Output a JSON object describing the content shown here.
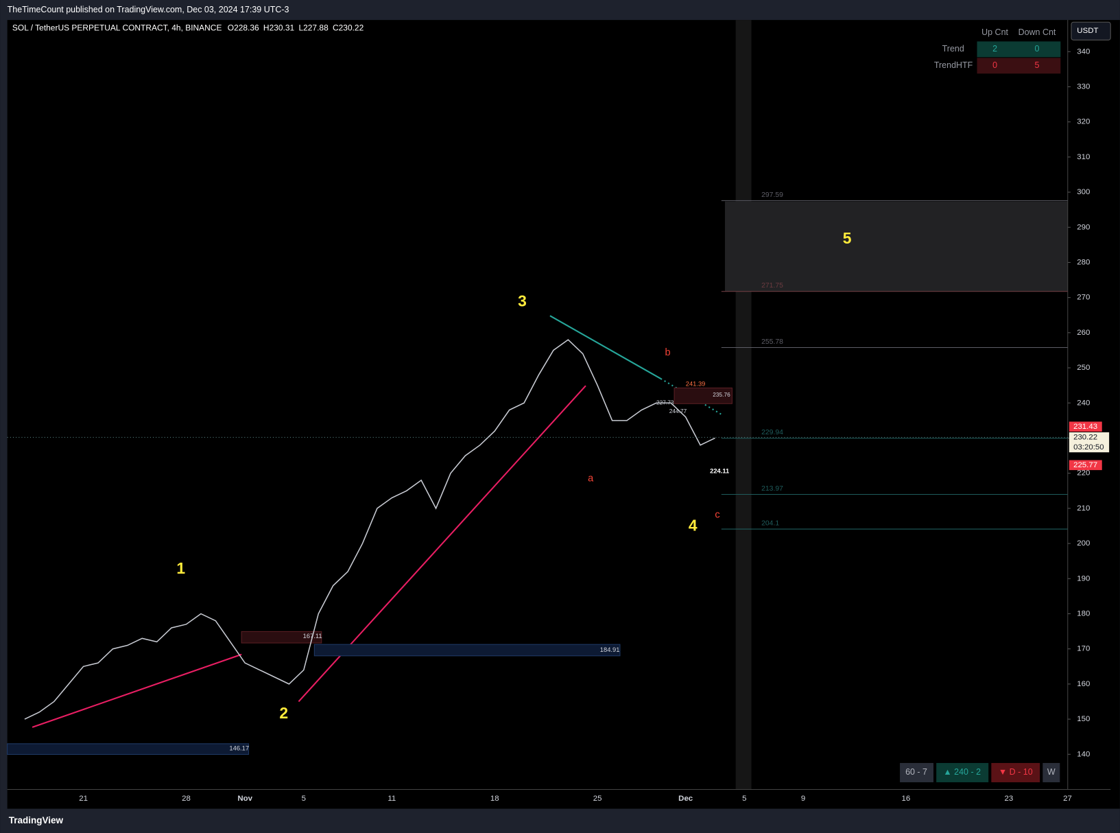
{
  "header": {
    "published": "TheTimeCount published on TradingView.com, Dec 03, 2024 17:39 UTC-3",
    "footer": "TradingView"
  },
  "symbol": {
    "name": "SOL / TetherUS PERPETUAL CONTRACT, 4h, BINANCE",
    "ohlc": [
      {
        "label": "O",
        "value": 228.36
      },
      {
        "label": "H",
        "value": 230.31
      },
      {
        "label": "L",
        "value": 227.88
      },
      {
        "label": "C",
        "value": 230.22
      }
    ]
  },
  "currency": "USDT",
  "table": {
    "header": [
      "Up Cnt",
      "Down Cnt"
    ],
    "rows": [
      [
        "Trend",
        2,
        0
      ],
      [
        "TrendHTF",
        0,
        5
      ]
    ]
  },
  "buttons": [
    "60 - 7",
    "▲ 240 - 2",
    "▼ D - 10",
    "W"
  ],
  "price_labels": {
    "high": 231.43,
    "last": 230.22,
    "countdown": "03:20:50",
    "low": 225.77
  },
  "waves": [
    "1",
    "2",
    "3",
    "4",
    "5"
  ],
  "subwaves": [
    "a",
    "b",
    "c"
  ],
  "annotations": [
    "184.91",
    "146.17",
    "167.11",
    "241.39",
    "235.76",
    "227.73",
    "244.77",
    "224.11"
  ],
  "levels": [
    {
      "value": 297.59,
      "color": "#5d5d66"
    },
    {
      "value": 271.75,
      "color": "#6b3b40"
    },
    {
      "value": 255.78,
      "color": "#5d5d66"
    },
    {
      "value": 229.94,
      "color": "#1f5c5c"
    },
    {
      "value": 213.97,
      "color": "#1f5c5c"
    },
    {
      "value": 204.1,
      "color": "#1f5c5c"
    }
  ],
  "chart_data": {
    "type": "line",
    "color": "#c8cbd3",
    "categories": [
      null,
      null,
      null,
      null,
      "21",
      null,
      null,
      null,
      null,
      null,
      null,
      "28",
      null,
      null,
      null,
      "Nov",
      null,
      null,
      null,
      "5",
      null,
      null,
      null,
      null,
      null,
      "11",
      null,
      null,
      null,
      null,
      null,
      null,
      "18",
      null,
      null,
      null,
      null,
      null,
      null,
      "25",
      null,
      null,
      null,
      null,
      null,
      "Dec",
      null,
      null,
      null,
      "5",
      null,
      null,
      null,
      "9",
      null,
      null,
      null,
      null,
      null,
      null,
      "16",
      null,
      null,
      null,
      null,
      null,
      null,
      "23",
      null,
      null,
      null,
      "27"
    ],
    "values": [
      150,
      152,
      155,
      160,
      165,
      166,
      170,
      171,
      173,
      172,
      176,
      177,
      180,
      178,
      172,
      166,
      164,
      162,
      160,
      164,
      180,
      188,
      192,
      200,
      210,
      213,
      215,
      218,
      210,
      220,
      225,
      228,
      232,
      238,
      240,
      248,
      255,
      258,
      254,
      245,
      235,
      235,
      238,
      240,
      240,
      236,
      228,
      230,
      null,
      null,
      null,
      null,
      null,
      null,
      null,
      null,
      null,
      null,
      null,
      null,
      null,
      null,
      null,
      null,
      null,
      null,
      null,
      null,
      null,
      null,
      null,
      null
    ],
    "ylim": [
      130,
      349
    ],
    "yticks": [
      140,
      150,
      160,
      170,
      180,
      190,
      200,
      210,
      220,
      230,
      240,
      250,
      260,
      270,
      280,
      290,
      300,
      310,
      320,
      330,
      340
    ]
  }
}
